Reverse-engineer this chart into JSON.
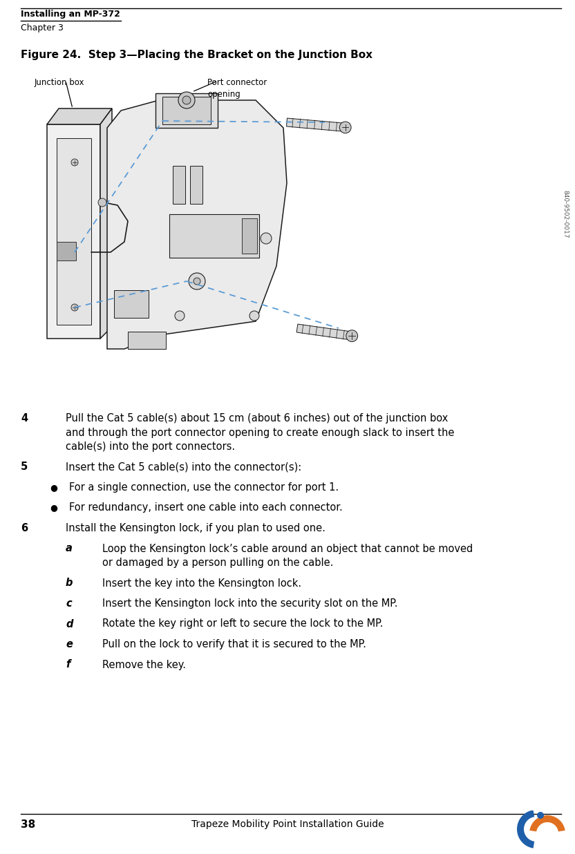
{
  "page_width": 8.32,
  "page_height": 12.36,
  "bg_color": "#ffffff",
  "header_title": "Installing an MP-372",
  "header_sub": "Chapter 3",
  "figure_title": "Figure 24.  Step 3—Placing the Bracket on the Junction Box",
  "footer_page": "38",
  "footer_center": "Trapeze Mobility Point Installation Guide",
  "label_junction": "Junction box",
  "label_port": "Port connector\nopening",
  "watermark": "840-9502-0017",
  "dashed_line_color": "#5b9bd5",
  "body_items": [
    {
      "num": "4",
      "style": "step",
      "lines": [
        "Pull the Cat 5 cable(s) about 15 cm (about 6 inches) out of the junction box",
        "and through the port connector opening to create enough slack to insert the",
        "cable(s) into the port connectors."
      ]
    },
    {
      "num": "5",
      "style": "step",
      "lines": [
        "Insert the Cat 5 cable(s) into the connector(s):"
      ]
    },
    {
      "num": null,
      "style": "bullet",
      "lines": [
        "For a single connection, use the connector for port 1."
      ]
    },
    {
      "num": null,
      "style": "bullet",
      "lines": [
        "For redundancy, insert one cable into each connector."
      ]
    },
    {
      "num": "6",
      "style": "step",
      "lines": [
        "Install the Kensington lock, if you plan to used one."
      ]
    },
    {
      "num": "a",
      "style": "sub",
      "lines": [
        "Loop the Kensington lock’s cable around an object that cannot be moved",
        "or damaged by a person pulling on the cable."
      ]
    },
    {
      "num": "b",
      "style": "sub",
      "lines": [
        "Insert the key into the Kensington lock."
      ]
    },
    {
      "num": "c",
      "style": "sub",
      "lines": [
        "Insert the Kensington lock into the security slot on the MP."
      ]
    },
    {
      "num": "d",
      "style": "sub",
      "lines": [
        "Rotate the key right or left to secure the lock to the MP."
      ]
    },
    {
      "num": "e",
      "style": "sub",
      "lines": [
        "Pull on the lock to verify that it is secured to the MP."
      ]
    },
    {
      "num": "f",
      "style": "sub",
      "lines": [
        "Remove the key."
      ]
    }
  ]
}
